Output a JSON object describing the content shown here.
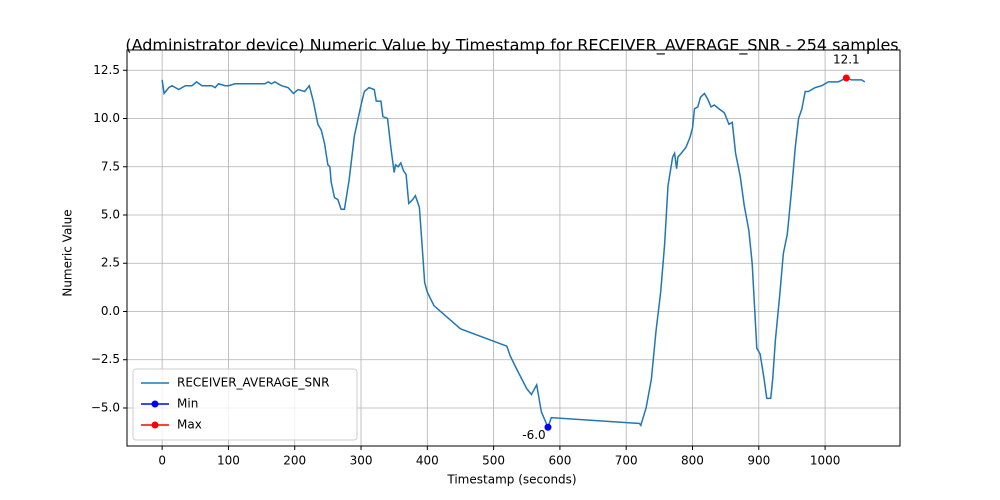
{
  "chart_data": {
    "type": "line",
    "title": "(Administrator device) Numeric Value by Timestamp for RECEIVER_AVERAGE_SNR - 254 samples",
    "x_label": "Timestamp (seconds)",
    "y_label": "Numeric Value",
    "xlim": [
      -53,
      1113
    ],
    "ylim": [
      -6.97,
      13.55
    ],
    "xticks": [
      0,
      100,
      200,
      300,
      400,
      500,
      600,
      700,
      800,
      900,
      1000
    ],
    "yticks": [
      {
        "value": -5,
        "label": "−5.0"
      },
      {
        "value": -2.5,
        "label": "−2.5"
      },
      {
        "value": 0,
        "label": "0.0"
      },
      {
        "value": 2.5,
        "label": "2.5"
      },
      {
        "value": 5,
        "label": "5.0"
      },
      {
        "value": 7.5,
        "label": "7.5"
      },
      {
        "value": 10,
        "label": "10.0"
      },
      {
        "value": 12.5,
        "label": "12.5"
      }
    ],
    "grid": true,
    "legend": "lower left",
    "series": [
      {
        "name": "RECEIVER_AVERAGE_SNR",
        "color": "#1f77b4",
        "x": [
          0,
          3,
          10,
          15,
          25,
          35,
          45,
          52,
          60,
          75,
          80,
          85,
          95,
          100,
          110,
          125,
          140,
          155,
          160,
          165,
          170,
          180,
          190,
          198,
          205,
          215,
          222,
          228,
          235,
          240,
          245,
          250,
          253,
          255,
          260,
          265,
          270,
          275,
          282,
          290,
          300,
          305,
          312,
          320,
          323,
          330,
          333,
          340,
          345,
          350,
          352,
          356,
          360,
          364,
          368,
          372,
          378,
          382,
          388,
          392,
          396,
          400,
          410,
          450,
          520,
          525,
          535,
          550,
          557,
          565,
          572,
          582,
          587,
          720,
          722,
          730,
          738,
          745,
          752,
          758,
          763,
          770,
          773,
          776,
          778,
          783,
          790,
          796,
          800,
          803,
          808,
          812,
          818,
          823,
          828,
          833,
          840,
          848,
          855,
          860,
          865,
          872,
          878,
          885,
          890,
          897,
          902,
          908,
          912,
          918,
          921,
          925,
          932,
          937,
          943,
          950,
          955,
          960,
          965,
          970,
          975,
          985,
          995,
          1005,
          1020,
          1032,
          1040,
          1055,
          1060
        ],
        "values": [
          12.0,
          11.3,
          11.6,
          11.7,
          11.5,
          11.7,
          11.7,
          11.9,
          11.7,
          11.7,
          11.6,
          11.8,
          11.7,
          11.7,
          11.8,
          11.8,
          11.8,
          11.8,
          11.9,
          11.8,
          11.9,
          11.7,
          11.6,
          11.3,
          11.5,
          11.4,
          11.7,
          10.9,
          9.7,
          9.4,
          8.7,
          7.6,
          7.5,
          6.7,
          5.9,
          5.8,
          5.3,
          5.3,
          6.8,
          9.1,
          10.7,
          11.4,
          11.6,
          11.5,
          10.9,
          10.9,
          10.1,
          10.0,
          8.5,
          7.2,
          7.6,
          7.5,
          7.7,
          7.3,
          7.1,
          5.6,
          5.8,
          6.0,
          5.4,
          3.5,
          1.5,
          1.0,
          0.3,
          -0.9,
          -1.8,
          -2.3,
          -3.0,
          -4.0,
          -4.3,
          -3.8,
          -5.2,
          -6.0,
          -5.5,
          -5.8,
          -5.9,
          -5.0,
          -3.5,
          -1.0,
          1.0,
          3.5,
          6.5,
          8.0,
          8.2,
          7.4,
          8.0,
          8.2,
          8.5,
          9.0,
          9.5,
          10.5,
          10.6,
          11.1,
          11.3,
          11.0,
          10.6,
          10.7,
          10.5,
          10.3,
          9.7,
          9.8,
          8.2,
          7.0,
          5.5,
          4.2,
          2.5,
          -1.9,
          -2.2,
          -3.5,
          -4.5,
          -4.5,
          -3.5,
          -1.5,
          1.0,
          3.0,
          4.0,
          6.5,
          8.5,
          10.0,
          10.5,
          11.4,
          11.4,
          11.6,
          11.7,
          11.9,
          11.9,
          12.1,
          12.0,
          12.0,
          11.9
        ]
      },
      {
        "name": "Min",
        "color": "#0000ff",
        "x": [
          582
        ],
        "values": [
          -6.0
        ],
        "value_labels": [
          "-6.0"
        ]
      },
      {
        "name": "Max",
        "color": "#ff0000",
        "x": [
          1032
        ],
        "values": [
          12.1
        ]
      }
    ]
  }
}
